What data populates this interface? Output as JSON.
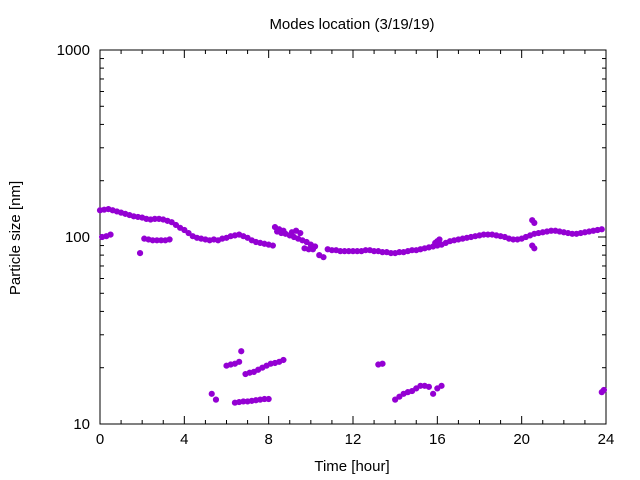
{
  "chart_data": {
    "type": "scatter",
    "title": "Modes location (3/19/19)",
    "xlabel": "Time [hour]",
    "ylabel": "Particle size [nm]",
    "xlim": [
      0,
      24
    ],
    "ylim": [
      10,
      1000
    ],
    "yscale": "log",
    "x_ticks": [
      0,
      4,
      8,
      12,
      16,
      20,
      24
    ],
    "x_tick_labels": [
      "0",
      "4",
      "8",
      "12",
      "16",
      "20",
      "24"
    ],
    "y_ticks": [
      10,
      100,
      1000
    ],
    "y_tick_labels": [
      "10",
      "100",
      "1000"
    ],
    "grid": false,
    "legend": "none",
    "marker_color": "#9400d3",
    "series": [
      {
        "values": [
          [
            0.0,
            139
          ],
          [
            0.2,
            140
          ],
          [
            0.4,
            141
          ],
          [
            0.6,
            139
          ],
          [
            0.8,
            137
          ],
          [
            1.0,
            135
          ],
          [
            1.2,
            133
          ],
          [
            1.4,
            131
          ],
          [
            1.6,
            129
          ],
          [
            1.8,
            128
          ],
          [
            2.0,
            127
          ],
          [
            2.2,
            125
          ],
          [
            2.4,
            124
          ],
          [
            2.6,
            125
          ],
          [
            2.8,
            125
          ],
          [
            3.0,
            124
          ],
          [
            3.2,
            122
          ],
          [
            3.4,
            120
          ],
          [
            3.6,
            116
          ],
          [
            3.8,
            112
          ],
          [
            4.0,
            109
          ],
          [
            4.2,
            105
          ],
          [
            4.4,
            101
          ],
          [
            4.6,
            99
          ],
          [
            4.8,
            98
          ],
          [
            5.0,
            97
          ],
          [
            5.2,
            96
          ],
          [
            5.4,
            97
          ],
          [
            5.6,
            96
          ],
          [
            5.8,
            98
          ],
          [
            6.0,
            99
          ],
          [
            6.2,
            101
          ],
          [
            6.4,
            102
          ],
          [
            6.6,
            103
          ],
          [
            6.8,
            101
          ],
          [
            7.0,
            99
          ],
          [
            7.2,
            96
          ],
          [
            7.4,
            94
          ],
          [
            7.6,
            93
          ],
          [
            7.8,
            92
          ],
          [
            8.0,
            91
          ],
          [
            8.2,
            90
          ],
          [
            8.4,
            107
          ],
          [
            8.6,
            105
          ],
          [
            8.8,
            104
          ],
          [
            9.0,
            102
          ],
          [
            9.2,
            100
          ],
          [
            9.4,
            98
          ],
          [
            9.6,
            96
          ],
          [
            9.8,
            94
          ],
          [
            10.0,
            91
          ],
          [
            10.2,
            89
          ],
          [
            10.4,
            80
          ],
          [
            10.6,
            78
          ],
          [
            10.8,
            86
          ],
          [
            11.0,
            85
          ],
          [
            11.2,
            85
          ],
          [
            11.4,
            84
          ],
          [
            11.6,
            84
          ],
          [
            11.8,
            84
          ],
          [
            12.0,
            84
          ],
          [
            12.2,
            84
          ],
          [
            12.4,
            84
          ],
          [
            12.6,
            85
          ],
          [
            12.8,
            85
          ],
          [
            13.0,
            84
          ],
          [
            13.2,
            84
          ],
          [
            13.4,
            83
          ],
          [
            13.6,
            83
          ],
          [
            13.8,
            82
          ],
          [
            14.0,
            82
          ],
          [
            14.2,
            83
          ],
          [
            14.4,
            83
          ],
          [
            14.6,
            84
          ],
          [
            14.8,
            85
          ],
          [
            15.0,
            85
          ],
          [
            15.2,
            86
          ],
          [
            15.4,
            87
          ],
          [
            15.6,
            88
          ],
          [
            15.8,
            89
          ],
          [
            16.0,
            90
          ],
          [
            16.2,
            91
          ],
          [
            16.4,
            93
          ],
          [
            16.6,
            95
          ],
          [
            16.8,
            96
          ],
          [
            17.0,
            97
          ],
          [
            17.2,
            98
          ],
          [
            17.4,
            99
          ],
          [
            17.6,
            100
          ],
          [
            17.8,
            101
          ],
          [
            18.0,
            102
          ],
          [
            18.2,
            103
          ],
          [
            18.4,
            103
          ],
          [
            18.6,
            103
          ],
          [
            18.8,
            102
          ],
          [
            19.0,
            101
          ],
          [
            19.2,
            100
          ],
          [
            19.4,
            98
          ],
          [
            19.6,
            97
          ],
          [
            19.8,
            97
          ],
          [
            20.0,
            98
          ],
          [
            20.2,
            100
          ],
          [
            20.4,
            102
          ],
          [
            20.6,
            104
          ],
          [
            20.8,
            105
          ],
          [
            21.0,
            106
          ],
          [
            21.2,
            107
          ],
          [
            21.4,
            108
          ],
          [
            21.6,
            108
          ],
          [
            21.8,
            107
          ],
          [
            22.0,
            106
          ],
          [
            22.2,
            105
          ],
          [
            22.4,
            104
          ],
          [
            22.6,
            104
          ],
          [
            22.8,
            105
          ],
          [
            23.0,
            106
          ],
          [
            23.2,
            107
          ],
          [
            23.4,
            108
          ],
          [
            23.6,
            109
          ],
          [
            23.8,
            110
          ],
          [
            0.1,
            100
          ],
          [
            0.3,
            101
          ],
          [
            0.5,
            103
          ],
          [
            1.9,
            82
          ],
          [
            2.1,
            98
          ],
          [
            2.3,
            97
          ],
          [
            2.5,
            96
          ],
          [
            2.7,
            96
          ],
          [
            2.9,
            96
          ],
          [
            3.1,
            96
          ],
          [
            3.3,
            97
          ],
          [
            8.3,
            113
          ],
          [
            8.5,
            110
          ],
          [
            8.7,
            108
          ],
          [
            9.1,
            106
          ],
          [
            9.3,
            108
          ],
          [
            9.5,
            105
          ],
          [
            9.7,
            87
          ],
          [
            9.9,
            86
          ],
          [
            10.1,
            86
          ],
          [
            20.5,
            123
          ],
          [
            20.6,
            119
          ],
          [
            20.5,
            90
          ],
          [
            20.6,
            87
          ],
          [
            16.0,
            95
          ],
          [
            15.9,
            93
          ],
          [
            16.1,
            97
          ],
          [
            5.3,
            14.5
          ],
          [
            5.5,
            13.5
          ],
          [
            6.0,
            20.5
          ],
          [
            6.2,
            20.8
          ],
          [
            6.4,
            21
          ],
          [
            6.6,
            21.5
          ],
          [
            6.7,
            24.5
          ],
          [
            6.9,
            18.5
          ],
          [
            7.1,
            18.8
          ],
          [
            7.3,
            19
          ],
          [
            7.5,
            19.5
          ],
          [
            7.7,
            20
          ],
          [
            7.9,
            20.5
          ],
          [
            8.1,
            21
          ],
          [
            8.3,
            21.2
          ],
          [
            8.5,
            21.5
          ],
          [
            8.7,
            22
          ],
          [
            6.4,
            13
          ],
          [
            6.6,
            13.1
          ],
          [
            6.8,
            13.2
          ],
          [
            7.0,
            13.2
          ],
          [
            7.2,
            13.3
          ],
          [
            7.4,
            13.4
          ],
          [
            7.6,
            13.5
          ],
          [
            7.8,
            13.6
          ],
          [
            8.0,
            13.6
          ],
          [
            13.2,
            20.8
          ],
          [
            13.4,
            21
          ],
          [
            14.0,
            13.5
          ],
          [
            14.2,
            14
          ],
          [
            14.4,
            14.5
          ],
          [
            14.6,
            14.8
          ],
          [
            14.8,
            15
          ],
          [
            15.0,
            15.5
          ],
          [
            15.2,
            16
          ],
          [
            15.4,
            16
          ],
          [
            15.6,
            15.8
          ],
          [
            15.8,
            14.5
          ],
          [
            16.0,
            15.5
          ],
          [
            16.2,
            16
          ],
          [
            23.8,
            14.8
          ],
          [
            23.9,
            15.2
          ]
        ]
      }
    ]
  }
}
